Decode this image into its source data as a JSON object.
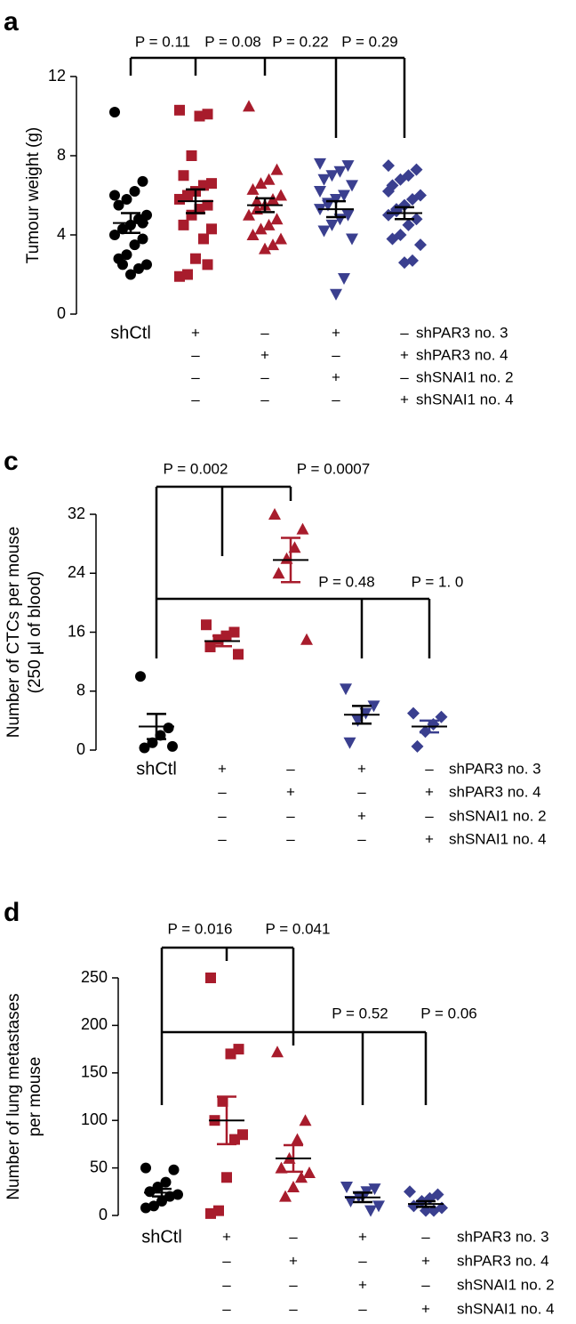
{
  "chart_data": [
    {
      "panel": "a",
      "type": "strip",
      "ylabel": [
        "Tumour weight (g)"
      ],
      "ylim": [
        0,
        12
      ],
      "yticks": [
        0,
        4,
        8,
        12
      ],
      "comparisons": [
        "P = 0.11",
        "P = 0.08",
        "P = 0.22",
        "P = 0.29"
      ],
      "conditions": [
        {
          "label": "shPAR3 no. 3",
          "cells": [
            "shCtl",
            "+",
            "–",
            "+",
            "–"
          ]
        },
        {
          "label": "shPAR3 no. 4",
          "cells": [
            null,
            "–",
            "+",
            "–",
            "+"
          ]
        },
        {
          "label": "shSNAI1 no. 2",
          "cells": [
            null,
            "–",
            "–",
            "+",
            "–"
          ]
        },
        {
          "label": "shSNAI1 no. 4",
          "cells": [
            null,
            "–",
            "–",
            "–",
            "+"
          ]
        }
      ],
      "series": [
        {
          "color": "#000000",
          "marker": "circle",
          "error_color": "#000000",
          "mean": 4.6,
          "error": 0.5,
          "values": [
            10.2,
            6.7,
            6.2,
            5.8,
            5.5,
            5.0,
            4.8,
            4.5,
            4.3,
            4.0,
            3.8,
            3.5,
            3.0,
            2.8,
            2.5,
            2.3,
            2.0,
            2.5,
            6.0,
            4.6
          ]
        },
        {
          "color": "#a81c2c",
          "marker": "square",
          "error_color": "#000000",
          "mean": 5.7,
          "error": 0.6,
          "values": [
            10.3,
            10.1,
            10.0,
            8.0,
            7.0,
            6.6,
            6.5,
            6.2,
            6.0,
            5.8,
            5.5,
            5.3,
            5.0,
            4.5,
            4.3,
            3.8,
            2.8,
            2.0,
            1.9,
            2.5
          ]
        },
        {
          "color": "#a81c2c",
          "marker": "triangle",
          "error_color": "#000000",
          "mean": 5.5,
          "error": 0.35,
          "values": [
            10.5,
            7.3,
            6.8,
            6.6,
            6.3,
            6.0,
            5.8,
            5.5,
            5.3,
            5.0,
            4.8,
            4.5,
            4.3,
            4.0,
            3.8,
            3.5,
            3.3,
            5.7
          ]
        },
        {
          "color": "#3a3f8f",
          "marker": "triangle-down",
          "error_color": "#000000",
          "mean": 5.3,
          "error": 0.4,
          "values": [
            7.6,
            7.5,
            7.2,
            7.0,
            6.8,
            6.5,
            6.0,
            5.8,
            5.5,
            5.3,
            5.0,
            4.8,
            4.5,
            4.2,
            3.8,
            1.8,
            1.0,
            5.6,
            6.2
          ]
        },
        {
          "color": "#3a3f8f",
          "marker": "diamond",
          "error_color": "#000000",
          "mean": 5.1,
          "error": 0.3,
          "values": [
            7.5,
            7.3,
            7.0,
            6.8,
            6.5,
            6.0,
            5.8,
            5.5,
            5.3,
            5.0,
            4.8,
            4.5,
            4.0,
            3.8,
            3.5,
            2.7,
            2.6,
            5.2,
            6.2
          ]
        }
      ]
    },
    {
      "panel": "c",
      "type": "strip",
      "ylabel": [
        "Number of CTCs per mouse",
        "(250 µl of blood)"
      ],
      "ylim": [
        0,
        32
      ],
      "yticks": [
        0,
        8,
        16,
        24,
        32
      ],
      "comparisons": [
        "P = 0.002",
        "P = 0.0007",
        "P = 0.48",
        "P = 1. 0"
      ],
      "conditions": [
        {
          "label": "shPAR3 no. 3",
          "cells": [
            "shCtl",
            "+",
            "–",
            "+",
            "–"
          ]
        },
        {
          "label": "shPAR3 no. 4",
          "cells": [
            null,
            "–",
            "+",
            "–",
            "+"
          ]
        },
        {
          "label": "shSNAI1 no. 2",
          "cells": [
            null,
            "–",
            "–",
            "+",
            "–"
          ]
        },
        {
          "label": "shSNAI1 no. 4",
          "cells": [
            null,
            "–",
            "–",
            "–",
            "+"
          ]
        }
      ],
      "series": [
        {
          "color": "#000000",
          "marker": "circle",
          "error_color": "#000000",
          "mean": 3.2,
          "error": 1.7,
          "values": [
            10,
            3,
            2,
            1,
            0.3,
            0.5
          ]
        },
        {
          "color": "#a81c2c",
          "marker": "square",
          "error_color": "#a81c2c",
          "mean": 14.8,
          "error": 0.7,
          "values": [
            17,
            16,
            15.5,
            15,
            14,
            13
          ]
        },
        {
          "color": "#a81c2c",
          "marker": "triangle",
          "error_color": "#a81c2c",
          "mean": 25.8,
          "error": 3,
          "values": [
            32,
            30,
            27.5,
            26,
            24,
            15
          ]
        },
        {
          "color": "#3a3f8f",
          "marker": "triangle-down",
          "error_color": "#000000",
          "mean": 4.8,
          "error": 1.2,
          "values": [
            8.3,
            6,
            5,
            4,
            1
          ]
        },
        {
          "color": "#3a3f8f",
          "marker": "diamond",
          "error_color": "#3a3f8f",
          "mean": 3.2,
          "error": 0.8,
          "values": [
            5,
            4.5,
            3.5,
            2.5,
            0.5
          ]
        }
      ]
    },
    {
      "panel": "d",
      "type": "strip",
      "ylabel": [
        "Number of lung metastases",
        "per mouse"
      ],
      "ylim": [
        0,
        250
      ],
      "yticks": [
        0,
        50,
        100,
        150,
        200,
        250
      ],
      "comparisons": [
        "P = 0.016",
        "P = 0.041",
        "P = 0.52",
        "P = 0.06"
      ],
      "conditions": [
        {
          "label": "shPAR3 no. 3",
          "cells": [
            "shCtl",
            "+",
            "–",
            "+",
            "–"
          ]
        },
        {
          "label": "shPAR3 no. 4",
          "cells": [
            null,
            "–",
            "+",
            "–",
            "+"
          ]
        },
        {
          "label": "shSNAI1 no. 2",
          "cells": [
            null,
            "–",
            "–",
            "+",
            "–"
          ]
        },
        {
          "label": "shSNAI1 no. 4",
          "cells": [
            null,
            "–",
            "–",
            "–",
            "+"
          ]
        }
      ],
      "series": [
        {
          "color": "#000000",
          "marker": "circle",
          "error_color": "#000000",
          "mean": 24,
          "error": 4,
          "values": [
            50,
            48,
            35,
            30,
            25,
            22,
            20,
            15,
            10,
            8
          ]
        },
        {
          "color": "#a81c2c",
          "marker": "square",
          "error_color": "#a81c2c",
          "mean": 100,
          "error": 25,
          "values": [
            250,
            175,
            170,
            120,
            100,
            85,
            80,
            40,
            5,
            2
          ]
        },
        {
          "color": "#a81c2c",
          "marker": "triangle",
          "error_color": "#a81c2c",
          "mean": 60,
          "error": 14,
          "values": [
            172,
            100,
            80,
            60,
            50,
            45,
            40,
            30,
            20
          ]
        },
        {
          "color": "#3a3f8f",
          "marker": "triangle-down",
          "error_color": "#000000",
          "mean": 19,
          "error": 5,
          "values": [
            30,
            28,
            25,
            20,
            15,
            10,
            5,
            20
          ]
        },
        {
          "color": "#3a3f8f",
          "marker": "diamond",
          "error_color": "#000000",
          "mean": 12,
          "error": 3,
          "values": [
            25,
            22,
            18,
            15,
            10,
            8,
            5,
            5
          ]
        }
      ]
    }
  ]
}
